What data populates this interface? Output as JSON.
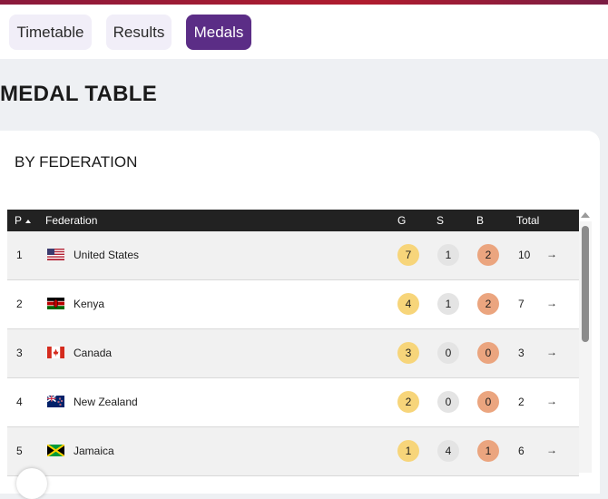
{
  "tabs": [
    {
      "label": "Timetable",
      "active": false
    },
    {
      "label": "Results",
      "active": false
    },
    {
      "label": "Medals",
      "active": true
    }
  ],
  "page_title": "MEDAL TABLE",
  "section_title": "BY FEDERATION",
  "columns": {
    "position": "P",
    "federation": "Federation",
    "gold": "G",
    "silver": "S",
    "bronze": "B",
    "total": "Total"
  },
  "sort": {
    "column": "position",
    "direction": "ascending",
    "icon": "sort-ascending-icon"
  },
  "rows": [
    {
      "pos": "1",
      "federation": "United States",
      "flag": "flag-us-icon",
      "g": "7",
      "s": "1",
      "b": "2",
      "total": "10"
    },
    {
      "pos": "2",
      "federation": "Kenya",
      "flag": "flag-kenya-icon",
      "g": "4",
      "s": "1",
      "b": "2",
      "total": "7"
    },
    {
      "pos": "3",
      "federation": "Canada",
      "flag": "flag-canada-icon",
      "g": "3",
      "s": "0",
      "b": "0",
      "total": "3"
    },
    {
      "pos": "4",
      "federation": "New Zealand",
      "flag": "flag-new-zealand-icon",
      "g": "2",
      "s": "0",
      "b": "0",
      "total": "2"
    },
    {
      "pos": "5",
      "federation": "Jamaica",
      "flag": "flag-jamaica-icon",
      "g": "1",
      "s": "4",
      "b": "1",
      "total": "6"
    }
  ],
  "colors": {
    "accent_purple": "#5b2d86",
    "gold": "#f7d57a",
    "silver": "#e4e4e4",
    "bronze": "#eba57f",
    "header_bg": "#222222"
  },
  "row_action_icon": "arrow-right-icon"
}
